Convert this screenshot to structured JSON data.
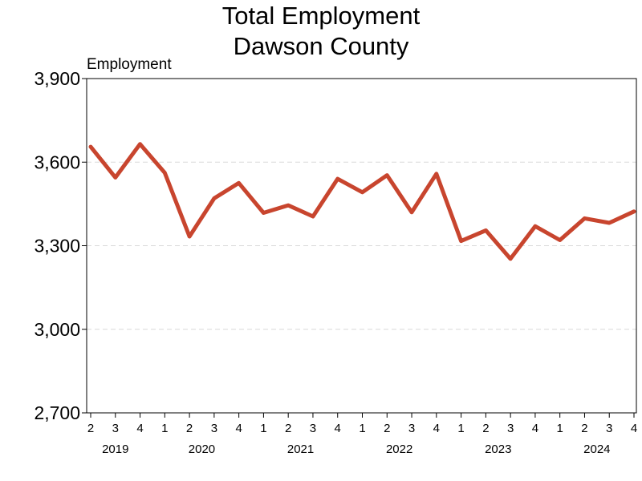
{
  "chart_data": {
    "type": "line",
    "title": [
      "Total Employment",
      "Dawson County"
    ],
    "ylabel": "Employment",
    "xlabel": "",
    "ylim": [
      2700,
      3900
    ],
    "yticks": [
      2700,
      3000,
      3300,
      3600,
      3900
    ],
    "ytick_labels": [
      "2,700",
      "3,000",
      "3,300",
      "3,600",
      "3,900"
    ],
    "grid": "horizontal dashed",
    "colors": {
      "line": "#c8452e",
      "grid": "#d9d9d9",
      "frame": "#000000"
    },
    "x": [
      {
        "year": 2019,
        "quarter": 2
      },
      {
        "year": 2019,
        "quarter": 3
      },
      {
        "year": 2019,
        "quarter": 4
      },
      {
        "year": 2020,
        "quarter": 1
      },
      {
        "year": 2020,
        "quarter": 2
      },
      {
        "year": 2020,
        "quarter": 3
      },
      {
        "year": 2020,
        "quarter": 4
      },
      {
        "year": 2021,
        "quarter": 1
      },
      {
        "year": 2021,
        "quarter": 2
      },
      {
        "year": 2021,
        "quarter": 3
      },
      {
        "year": 2021,
        "quarter": 4
      },
      {
        "year": 2022,
        "quarter": 1
      },
      {
        "year": 2022,
        "quarter": 2
      },
      {
        "year": 2022,
        "quarter": 3
      },
      {
        "year": 2022,
        "quarter": 4
      },
      {
        "year": 2023,
        "quarter": 1
      },
      {
        "year": 2023,
        "quarter": 2
      },
      {
        "year": 2023,
        "quarter": 3
      },
      {
        "year": 2023,
        "quarter": 4
      },
      {
        "year": 2024,
        "quarter": 1
      },
      {
        "year": 2024,
        "quarter": 2
      },
      {
        "year": 2024,
        "quarter": 3
      },
      {
        "year": 2024,
        "quarter": 4
      }
    ],
    "xtick_labels": [
      "2",
      "3",
      "4",
      "1",
      "2",
      "3",
      "4",
      "1",
      "2",
      "3",
      "4",
      "1",
      "2",
      "3",
      "4",
      "1",
      "2",
      "3",
      "4",
      "1",
      "2",
      "3",
      "4"
    ],
    "year_labels": [
      "2019",
      "2020",
      "2021",
      "2022",
      "2023",
      "2024"
    ],
    "series": [
      {
        "values": [
          3655,
          3545,
          3665,
          3562,
          3333,
          3470,
          3525,
          3418,
          3445,
          3405,
          3540,
          3492,
          3553,
          3420,
          3558,
          3317,
          3355,
          3253,
          3370,
          3320,
          3398,
          3382,
          3423
        ]
      }
    ]
  }
}
